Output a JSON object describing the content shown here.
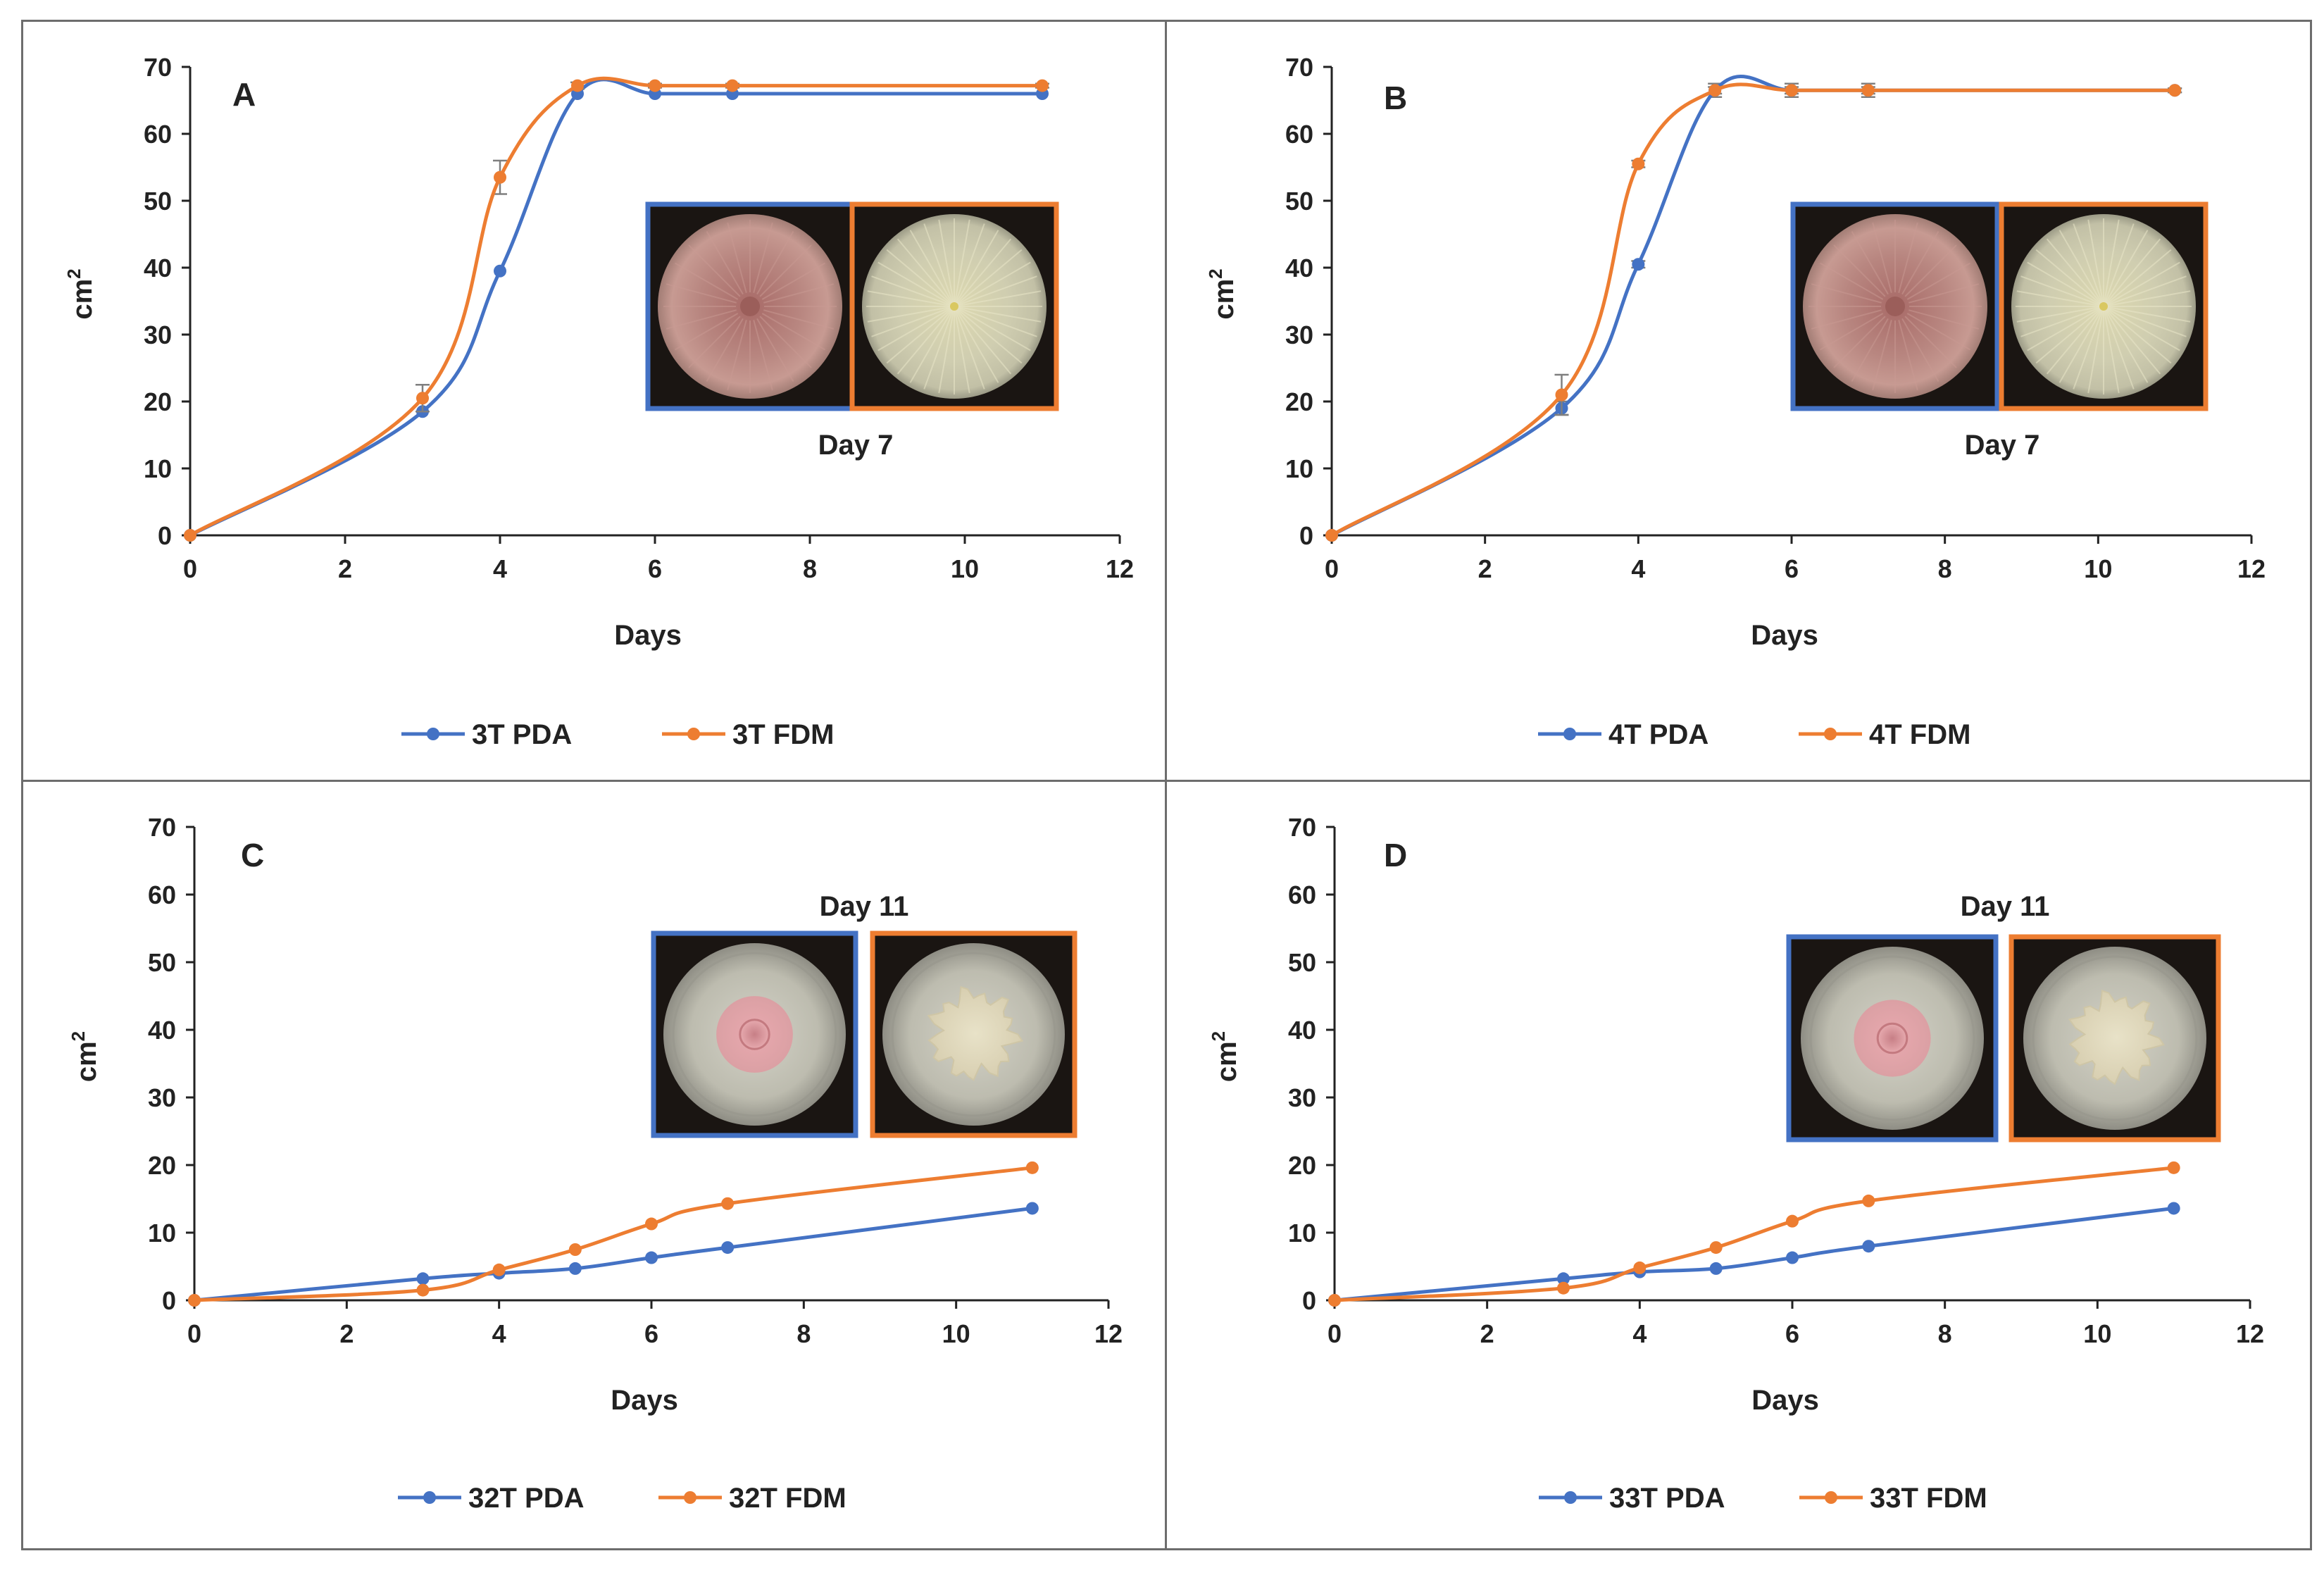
{
  "figure": {
    "y_axis_label": "cm",
    "y_axis_label_sup": "2",
    "x_axis_label": "Days",
    "colors": {
      "pda": "#4472c4",
      "fdm": "#ed7d31",
      "frame": "#6d6d6d",
      "errorbar": "#7f7f7f"
    }
  },
  "chart_data": [
    {
      "type": "line",
      "panel": "A",
      "inset_caption": "Day 7",
      "xlabel": "Days",
      "ylabel": "cm2",
      "xlim": [
        0,
        12
      ],
      "ylim": [
        0,
        70
      ],
      "x_ticks": [
        0,
        2,
        4,
        6,
        8,
        10,
        12
      ],
      "y_ticks": [
        0,
        10,
        20,
        30,
        40,
        50,
        60,
        70
      ],
      "x": [
        0,
        3,
        4,
        5,
        6,
        7,
        11
      ],
      "series": [
        {
          "name": "3T PDA",
          "color": "#4472c4",
          "values": [
            0,
            18.5,
            39.5,
            66,
            66,
            66,
            66
          ]
        },
        {
          "name": "3T FDM",
          "color": "#ed7d31",
          "values": [
            0,
            20.5,
            53.5,
            67.2,
            67.2,
            67.2,
            67.2
          ],
          "error": [
            0,
            2,
            2.5,
            0.5,
            0.3,
            0.3,
            0.3
          ]
        }
      ],
      "legend": "bottom-center",
      "inset_images": [
        "petri-dish-pink-full",
        "petri-dish-cream-full"
      ]
    },
    {
      "type": "line",
      "panel": "B",
      "inset_caption": "Day 7",
      "xlabel": "Days",
      "ylabel": "cm2",
      "xlim": [
        0,
        12
      ],
      "ylim": [
        0,
        70
      ],
      "x_ticks": [
        0,
        2,
        4,
        6,
        8,
        10,
        12
      ],
      "y_ticks": [
        0,
        10,
        20,
        30,
        40,
        50,
        60,
        70
      ],
      "x": [
        0,
        3,
        4,
        5,
        6,
        7,
        11
      ],
      "series": [
        {
          "name": "4T PDA",
          "color": "#4472c4",
          "values": [
            0,
            19,
            40.5,
            66.5,
            66.5,
            66.5,
            66.5
          ],
          "error": [
            0,
            1,
            0.5,
            1,
            1,
            1,
            0.3
          ]
        },
        {
          "name": "4T FDM",
          "color": "#ed7d31",
          "values": [
            0,
            21,
            55.5,
            66.5,
            66.5,
            66.5,
            66.5
          ],
          "error": [
            0,
            3,
            0.5,
            0.5,
            0.5,
            0.5,
            0.3
          ]
        }
      ],
      "legend": "bottom-center",
      "inset_images": [
        "petri-dish-pink-full",
        "petri-dish-cream-full"
      ]
    },
    {
      "type": "line",
      "panel": "C",
      "inset_caption": "Day 11",
      "xlabel": "Days",
      "ylabel": "cm2",
      "xlim": [
        0,
        12
      ],
      "ylim": [
        0,
        70
      ],
      "x_ticks": [
        0,
        2,
        4,
        6,
        8,
        10,
        12
      ],
      "y_ticks": [
        0,
        10,
        20,
        30,
        40,
        50,
        60,
        70
      ],
      "x": [
        0,
        3,
        4,
        5,
        6,
        7,
        11
      ],
      "series": [
        {
          "name": "32T PDA",
          "color": "#4472c4",
          "values": [
            0,
            3.2,
            4,
            4.7,
            6.3,
            7.8,
            13.6
          ]
        },
        {
          "name": "32T FDM",
          "color": "#ed7d31",
          "values": [
            0,
            1.5,
            4.5,
            7.5,
            11.3,
            14.3,
            19.6
          ]
        }
      ],
      "legend": "bottom-center",
      "inset_images": [
        "petri-dish-pink-colony",
        "petri-dish-cream-colony"
      ]
    },
    {
      "type": "line",
      "panel": "D",
      "inset_caption": "Day 11",
      "xlabel": "Days",
      "ylabel": "cm2",
      "xlim": [
        0,
        12
      ],
      "ylim": [
        0,
        70
      ],
      "x_ticks": [
        0,
        2,
        4,
        6,
        8,
        10,
        12
      ],
      "y_ticks": [
        0,
        10,
        20,
        30,
        40,
        50,
        60,
        70
      ],
      "x": [
        0,
        3,
        4,
        5,
        6,
        7,
        11
      ],
      "series": [
        {
          "name": "33T PDA",
          "color": "#4472c4",
          "values": [
            0,
            3.2,
            4.2,
            4.7,
            6.3,
            8,
            13.6
          ]
        },
        {
          "name": "33T FDM",
          "color": "#ed7d31",
          "values": [
            0,
            1.8,
            4.8,
            7.8,
            11.7,
            14.7,
            19.6
          ]
        }
      ],
      "legend": "bottom-center",
      "inset_images": [
        "petri-dish-pink-colony",
        "petri-dish-cream-colony"
      ]
    }
  ]
}
